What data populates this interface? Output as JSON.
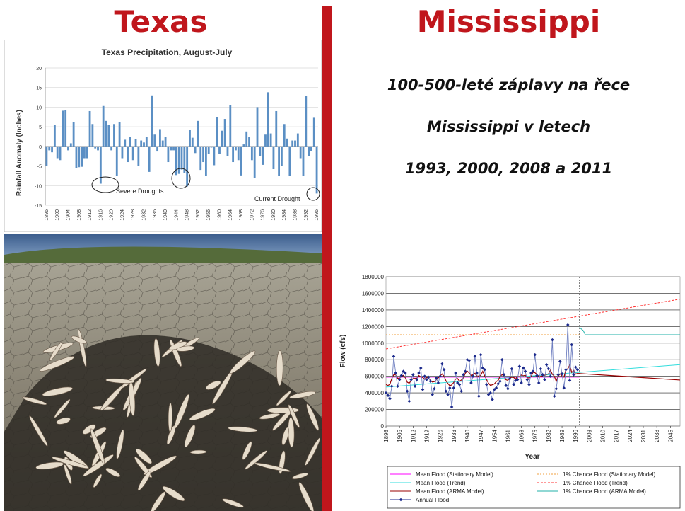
{
  "slide": {
    "left_title": "Texas",
    "right_title": "Mississippi",
    "text_lines": [
      "100-500-leté záplavy na řece",
      "Mississippi v letech",
      "1993, 2000, 2008 a 2011"
    ],
    "accent_color": "#c0161c"
  },
  "photo": {
    "subject": "cracked dry lakebed with dead fish"
  },
  "chart_data": [
    {
      "type": "bar",
      "title": "Texas Precipitation, August-July",
      "xlabel": "",
      "ylabel": "Rainfall Anomaly (Inches)",
      "ylim": [
        -15,
        20
      ],
      "yticks": [
        -15,
        -10,
        -5,
        0,
        5,
        10,
        15,
        20
      ],
      "xtick_labels": [
        "1896",
        "1900",
        "1904",
        "1908",
        "1912",
        "1916",
        "1920",
        "1924",
        "1928",
        "1932",
        "1936",
        "1940",
        "1944",
        "1948",
        "1952",
        "1956",
        "1960",
        "1964",
        "1968",
        "1972",
        "1976",
        "1980",
        "1984",
        "1988",
        "1992",
        "1996",
        "2000",
        "2004",
        "2008"
      ],
      "bar_color": "#5b8fc4",
      "x_start": 1896,
      "values": [
        -5,
        -1,
        -1.5,
        5.5,
        -3,
        -3.5,
        9.1,
        9.2,
        -1,
        0.8,
        6.2,
        -5.5,
        -5.3,
        -5.2,
        -3,
        -3,
        9,
        5.7,
        -0.5,
        -1,
        -9.5,
        10.3,
        6.5,
        5.4,
        -1,
        5.7,
        -7.5,
        6.2,
        -3,
        1.7,
        -4,
        2.5,
        -3.5,
        1.8,
        -4.9,
        1.5,
        1,
        2.5,
        -6.5,
        13,
        3,
        -1.3,
        4.4,
        1.5,
        2.5,
        -4,
        -1,
        -1,
        -7.3,
        -7,
        -5.9,
        -6.8,
        -10.2,
        4.2,
        2.2,
        -1.7,
        6.5,
        -6,
        -4,
        -7.5,
        -2,
        -0.3,
        -4.8,
        7.5,
        -2,
        4,
        7,
        -2.5,
        10.5,
        -4,
        -1,
        -3.5,
        -7.4,
        0.5,
        3.8,
        2.4,
        -3.5,
        -8,
        10,
        -2.5,
        -4.7,
        3,
        13.8,
        3.3,
        -5.8,
        9,
        -7.5,
        -5,
        5.7,
        2,
        -7.5,
        1.5,
        1.5,
        3.3,
        -3,
        -7.5,
        12.8,
        -2.5,
        -1.2,
        7.3,
        -12
      ],
      "annotations": [
        {
          "text": "Severe Droughts",
          "x": 1944,
          "y": -12
        },
        {
          "text": "Current Drought",
          "x": 1980,
          "y": -14
        }
      ]
    },
    {
      "type": "line",
      "title": "",
      "xlabel": "Year",
      "ylabel": "Flow (cfs)",
      "ylim": [
        0,
        1800000
      ],
      "xlim": [
        1898,
        2050
      ],
      "yticks": [
        0,
        200000,
        400000,
        600000,
        800000,
        1000000,
        1200000,
        1400000,
        1600000,
        1800000
      ],
      "ytick_labels": [
        "0",
        "200000",
        "400000",
        "600000",
        "800000",
        "1000000",
        "1200000",
        "1400000",
        "1600000",
        "1800000"
      ],
      "xticks": [
        1898,
        1905,
        1912,
        1919,
        1926,
        1933,
        1940,
        1947,
        1954,
        1961,
        1968,
        1975,
        1982,
        1989,
        1996,
        2003,
        2010,
        2017,
        2024,
        2031,
        2038,
        2045
      ],
      "vline_year": 1998,
      "annual_flood_start": 1898,
      "annual_flood": [
        400000,
        370000,
        330000,
        480000,
        840000,
        640000,
        480000,
        560000,
        610000,
        660000,
        640000,
        420000,
        300000,
        560000,
        620000,
        480000,
        560000,
        640000,
        700000,
        440000,
        600000,
        560000,
        590000,
        540000,
        380000,
        450000,
        580000,
        520000,
        600000,
        750000,
        680000,
        420000,
        380000,
        460000,
        230000,
        460000,
        640000,
        520000,
        500000,
        420000,
        620000,
        660000,
        800000,
        790000,
        520000,
        600000,
        840000,
        640000,
        360000,
        860000,
        700000,
        680000,
        500000,
        380000,
        400000,
        320000,
        440000,
        460000,
        510000,
        540000,
        800000,
        620000,
        490000,
        450000,
        570000,
        690000,
        500000,
        550000,
        560000,
        720000,
        520000,
        700000,
        660000,
        560000,
        500000,
        640000,
        660000,
        860000,
        610000,
        520000,
        690000,
        620000,
        560000,
        740000,
        690000,
        600000,
        1040000,
        360000,
        450000,
        620000,
        780000,
        630000,
        460000,
        680000,
        1220000,
        550000,
        980000,
        620000,
        710000,
        680000
      ],
      "mean_stationary": {
        "name": "Mean Flood (Stationary Model)",
        "color": "#ff00ff",
        "value": 590000
      },
      "mean_trend": {
        "name": "Mean Flood (Trend)",
        "color": "#33dddd",
        "x": [
          1898,
          2050
        ],
        "y": [
          470000,
          740000
        ]
      },
      "mean_arma": {
        "name": "Mean Flood (ARMA Model)",
        "color": "#990000",
        "forecast_value": 555000
      },
      "p1_stationary": {
        "name": "1% Chance Flood (Stationary Model)",
        "color": "#f0a040",
        "value": 1100000
      },
      "p1_trend": {
        "name": "1% Chance Flood (Trend)",
        "color": "#ff3333",
        "x": [
          1898,
          2050
        ],
        "y": [
          930000,
          1530000
        ]
      },
      "p1_arma": {
        "name": "1% Chance Flood (ARMA Model)",
        "color": "#20b2aa",
        "x": [
          1998,
          2000,
          2001,
          2050
        ],
        "y": [
          1190000,
          1150000,
          1100000,
          1100000
        ]
      },
      "annual_series": {
        "name": "Annual Flood",
        "color": "#1c2a8c"
      }
    }
  ]
}
